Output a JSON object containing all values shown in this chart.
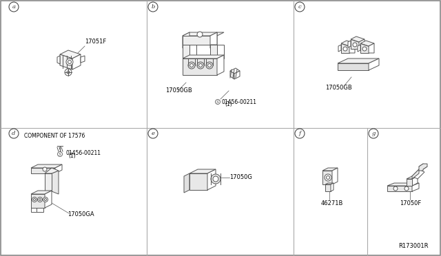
{
  "background_color": "#ffffff",
  "border_color": "#888888",
  "line_color": "#555555",
  "text_color": "#000000",
  "fig_width": 6.4,
  "fig_height": 3.72,
  "dpi": 100,
  "part_labels": {
    "a": "17051F",
    "b_part": "17050GB",
    "b_screw": "01456-00211",
    "b_screw2": "(1)",
    "c": "17050GB",
    "d_component": "COMPONENT OF 17576",
    "d_screw": "01456-00211",
    "d_screw2": "(1)",
    "d_part": "17050GA",
    "e": "17050G",
    "f": "46271B",
    "g": "17050F",
    "ref": "R173001R"
  }
}
